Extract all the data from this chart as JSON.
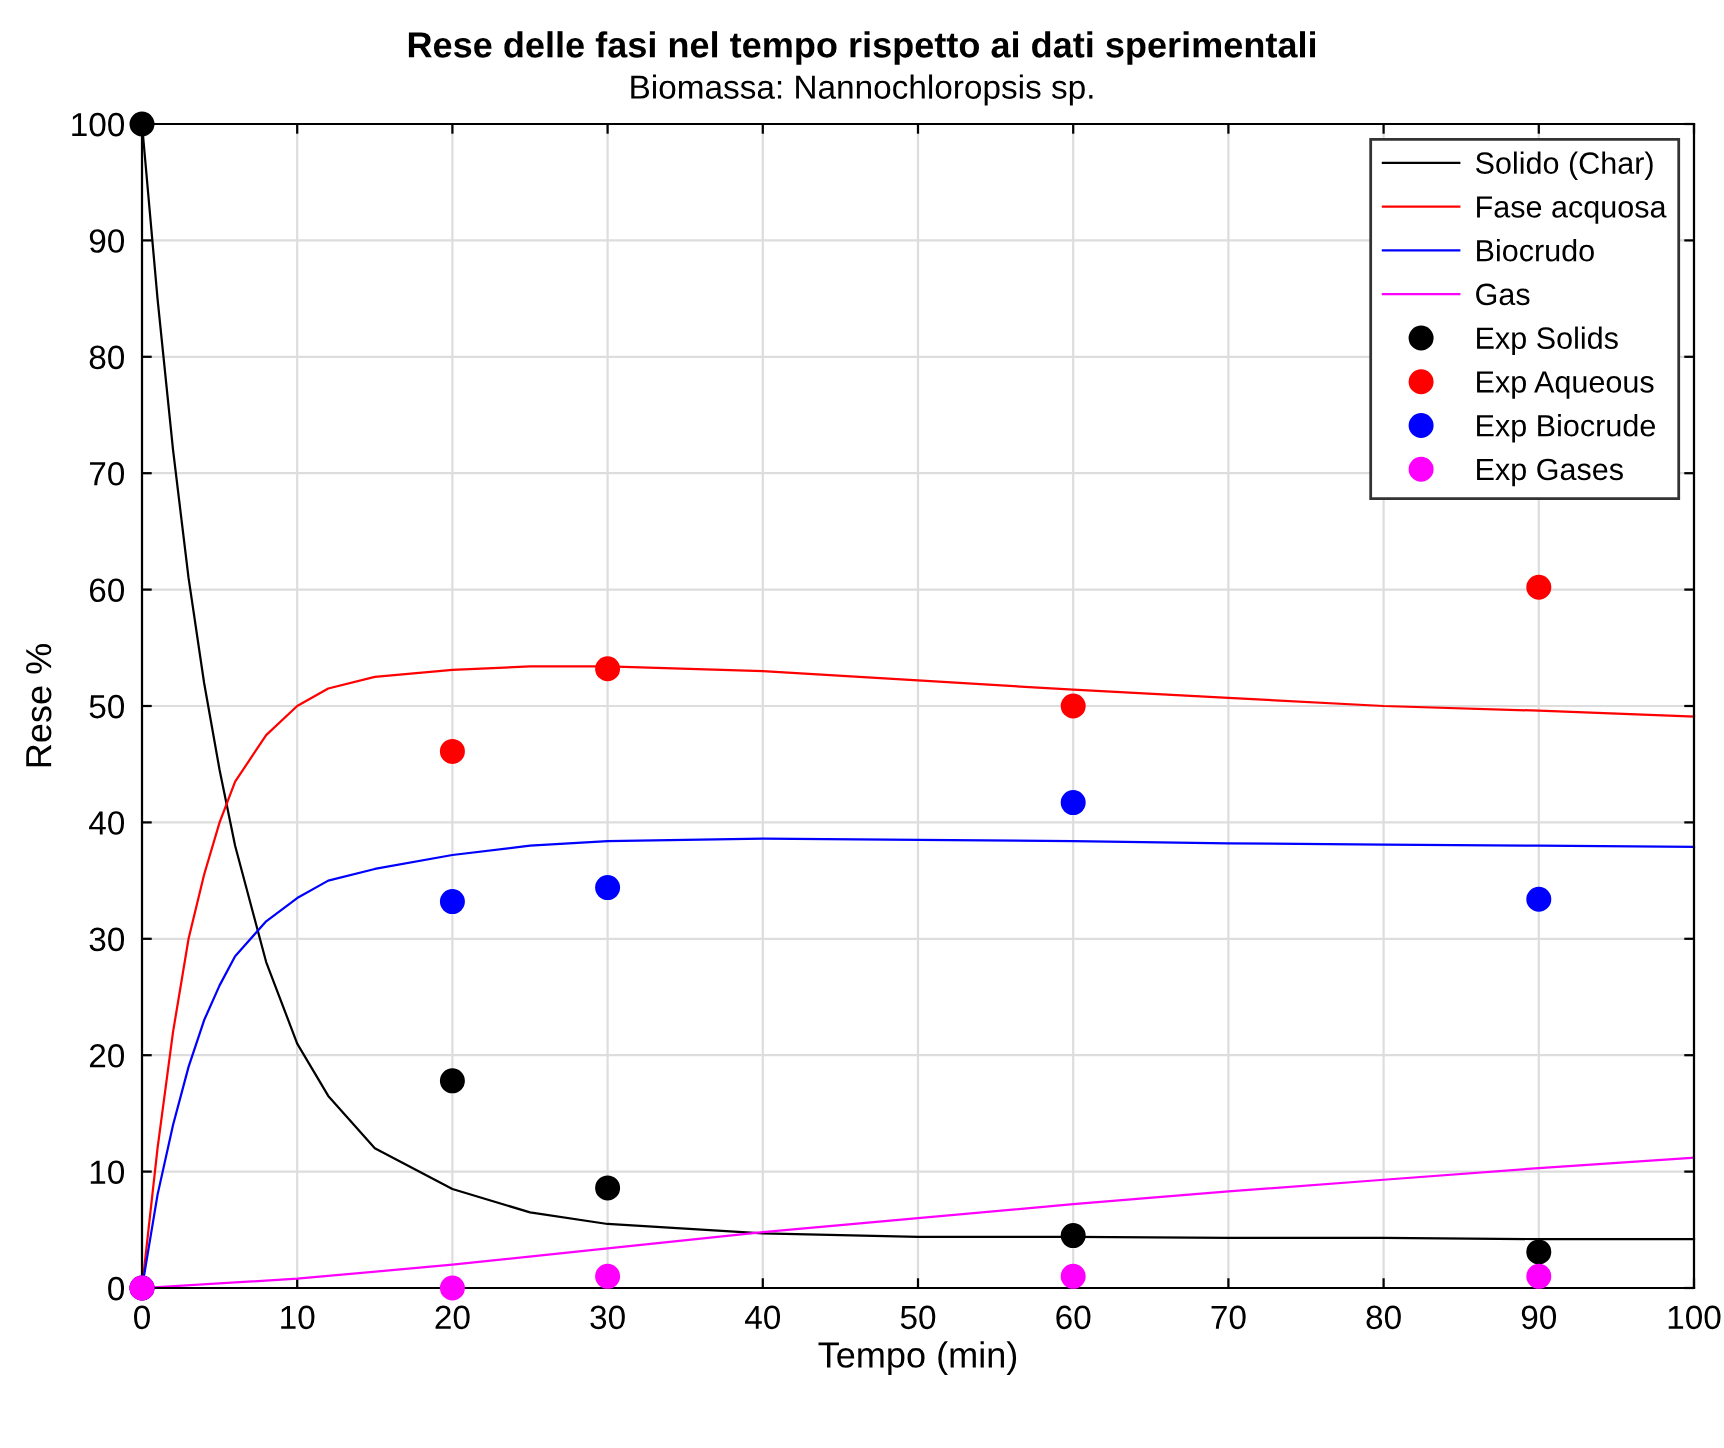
{
  "chart_data": {
    "type": "line",
    "title": "Rese delle fasi nel tempo rispetto ai dati sperimentali",
    "subtitle": "Biomassa: Nannochloropsis sp.",
    "xlabel": "Tempo (min)",
    "ylabel": "Rese %",
    "xlim": [
      0,
      100
    ],
    "xticks": [
      0,
      10,
      20,
      30,
      40,
      50,
      60,
      70,
      80,
      90,
      100
    ],
    "ylim": [
      0,
      100
    ],
    "yticks": [
      0,
      10,
      20,
      30,
      40,
      50,
      60,
      70,
      80,
      90,
      100
    ],
    "grid": true,
    "legend": "top right",
    "series": [
      {
        "name": "Solido (Char)",
        "color": "#000000",
        "x": [
          0,
          1,
          2,
          3,
          4,
          5,
          6,
          8,
          10,
          12,
          15,
          20,
          25,
          30,
          40,
          50,
          60,
          70,
          80,
          90,
          100
        ],
        "values": [
          100,
          85,
          72,
          61,
          52,
          44.5,
          38,
          28,
          21,
          16.5,
          12,
          8.5,
          6.5,
          5.5,
          4.7,
          4.4,
          4.4,
          4.3,
          4.3,
          4.2,
          4.2
        ]
      },
      {
        "name": "Fase acquosa",
        "color": "#ff0000",
        "x": [
          0,
          1,
          2,
          3,
          4,
          5,
          6,
          8,
          10,
          12,
          15,
          20,
          25,
          30,
          40,
          50,
          60,
          70,
          80,
          90,
          100
        ],
        "values": [
          0,
          12,
          22,
          30,
          35.5,
          40,
          43.5,
          47.5,
          50,
          51.5,
          52.5,
          53.1,
          53.4,
          53.4,
          53,
          52.2,
          51.4,
          50.7,
          50,
          49.6,
          49.1
        ]
      },
      {
        "name": "Biocrudo",
        "color": "#0000ff",
        "x": [
          0,
          1,
          2,
          3,
          4,
          5,
          6,
          8,
          10,
          12,
          15,
          20,
          25,
          30,
          40,
          50,
          60,
          70,
          80,
          90,
          100
        ],
        "values": [
          0,
          8,
          14,
          19,
          23,
          26,
          28.5,
          31.5,
          33.5,
          35,
          36,
          37.2,
          38,
          38.4,
          38.6,
          38.5,
          38.4,
          38.2,
          38.1,
          38,
          37.9
        ]
      },
      {
        "name": "Gas",
        "color": "#ff00ff",
        "x": [
          0,
          10,
          20,
          30,
          40,
          50,
          60,
          70,
          80,
          90,
          100
        ],
        "values": [
          0,
          0.8,
          2,
          3.4,
          4.8,
          6,
          7.2,
          8.3,
          9.3,
          10.3,
          11.2
        ]
      },
      {
        "name": "Exp Solids",
        "type": "scatter",
        "marker": "circle",
        "color": "#000000",
        "x": [
          0,
          20,
          30,
          60,
          90
        ],
        "values": [
          100,
          17.8,
          8.6,
          4.5,
          3.1
        ]
      },
      {
        "name": "Exp Aqueous",
        "type": "scatter",
        "marker": "circle",
        "color": "#ff0000",
        "x": [
          0,
          20,
          30,
          60,
          90
        ],
        "values": [
          0,
          46.1,
          53.2,
          50.0,
          60.2
        ]
      },
      {
        "name": "Exp Biocrude",
        "type": "scatter",
        "marker": "circle",
        "color": "#0000ff",
        "x": [
          0,
          20,
          30,
          60,
          90
        ],
        "values": [
          0,
          33.2,
          34.4,
          41.7,
          33.4
        ]
      },
      {
        "name": "Exp Gases",
        "type": "scatter",
        "marker": "circle",
        "color": "#ff00ff",
        "x": [
          0,
          20,
          30,
          60,
          90
        ],
        "values": [
          0,
          0,
          1,
          1,
          1
        ]
      }
    ]
  }
}
